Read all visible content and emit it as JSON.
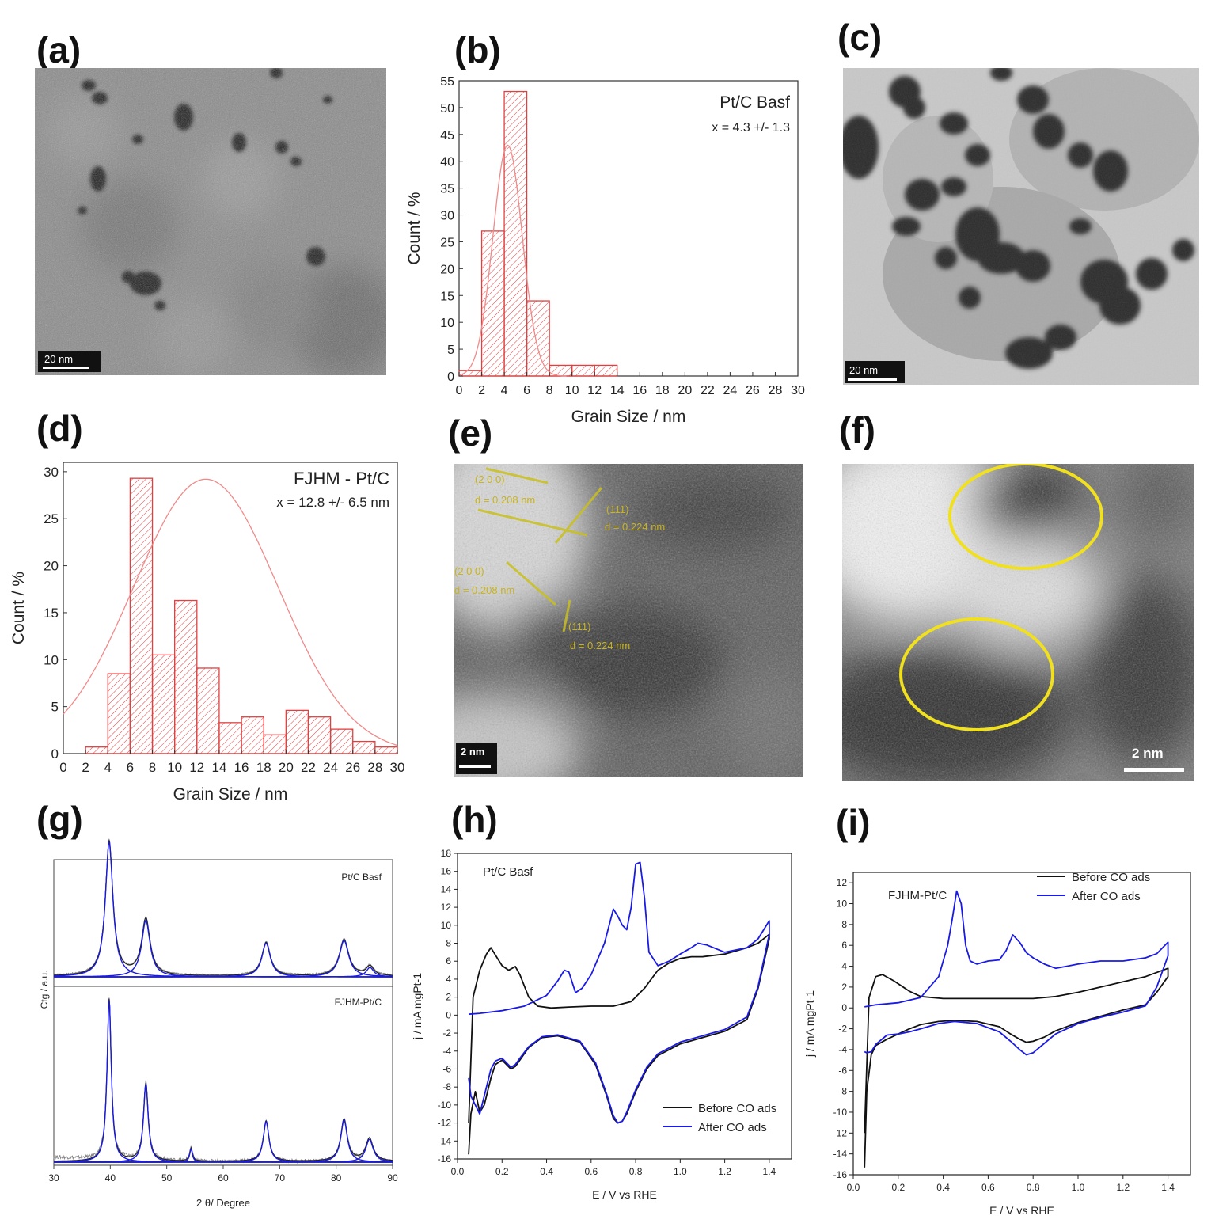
{
  "figure": {
    "panels": [
      {
        "label": "(a)",
        "scale_bar": "20 nm"
      },
      {
        "label": "(b)"
      },
      {
        "label": "(c)",
        "scale_bar": "20 nm"
      },
      {
        "label": "(d)"
      },
      {
        "label": "(e)",
        "scale_bar": "2 nm",
        "annotations": [
          "(2 0 0)",
          "d = 0.208 nm",
          "(111)",
          "d = 0.224 nm",
          "(2 0 0)",
          "d = 0.208 nm",
          "(111)",
          "d = 0.224 nm"
        ]
      },
      {
        "label": "(f)",
        "scale_bar": "2 nm"
      },
      {
        "label": "(g)"
      },
      {
        "label": "(h)"
      },
      {
        "label": "(i)"
      }
    ]
  },
  "chart_data": [
    {
      "id": "b",
      "type": "bar",
      "title": "Pt/C Basf",
      "annotation": "x = 4.3 +/- 1.3",
      "xlabel": "Grain Size / nm",
      "ylabel": "Count / %",
      "xlim": [
        0,
        30
      ],
      "ylim": [
        0,
        55
      ],
      "xticks": [
        0,
        2,
        4,
        6,
        8,
        10,
        12,
        14,
        16,
        18,
        20,
        22,
        24,
        26,
        28,
        30
      ],
      "yticks": [
        0,
        5,
        10,
        15,
        20,
        25,
        30,
        35,
        40,
        45,
        50,
        55
      ],
      "bin_edges": [
        0,
        2,
        4,
        6,
        8,
        10,
        12,
        14
      ],
      "values": [
        1,
        27,
        53,
        14,
        2,
        2,
        2
      ],
      "fit": {
        "type": "gaussian",
        "mean": 4.3,
        "sd": 1.3,
        "peak": 43
      },
      "colors": {
        "bar": "#e04040",
        "fit": "#f08a8a"
      }
    },
    {
      "id": "d",
      "type": "bar",
      "title": "FJHM - Pt/C",
      "annotation": "x = 12.8 +/- 6.5 nm",
      "xlabel": "Grain Size / nm",
      "ylabel": "Count / %",
      "xlim": [
        0,
        30
      ],
      "ylim": [
        0,
        31
      ],
      "xticks": [
        0,
        2,
        4,
        6,
        8,
        10,
        12,
        14,
        16,
        18,
        20,
        22,
        24,
        26,
        28,
        30
      ],
      "yticks": [
        0,
        5,
        10,
        15,
        20,
        25,
        30
      ],
      "bin_edges": [
        2,
        4,
        6,
        8,
        10,
        12,
        14,
        16,
        18,
        20,
        22,
        24,
        26,
        28,
        30
      ],
      "values": [
        0.7,
        8.5,
        29.3,
        10.5,
        16.3,
        9.1,
        3.3,
        3.9,
        2.0,
        4.6,
        3.9,
        2.6,
        1.3,
        0.7
      ],
      "fit": {
        "type": "gaussian",
        "mean": 12.8,
        "sd": 6.5,
        "peak": 29.2
      },
      "colors": {
        "bar": "#e04040",
        "fit": "#f08a8a"
      }
    },
    {
      "id": "g",
      "type": "line",
      "xlabel": "2 θ/ Degree",
      "ylabel": "Ctg / a.u.",
      "xlim": [
        30,
        90
      ],
      "xticks": [
        30,
        40,
        50,
        60,
        70,
        80,
        90
      ],
      "series": [
        {
          "name": "Pt/C Basf",
          "peaks": [
            {
              "x": 39.8,
              "h": 1.0,
              "w": 0.8
            },
            {
              "x": 46.3,
              "h": 0.42,
              "w": 0.9
            },
            {
              "x": 67.6,
              "h": 0.25,
              "w": 0.9
            },
            {
              "x": 81.4,
              "h": 0.27,
              "w": 1.0
            },
            {
              "x": 86.0,
              "h": 0.07,
              "w": 0.8
            }
          ]
        },
        {
          "name": "FJHM-Pt/C",
          "peaks": [
            {
              "x": 39.8,
              "h": 1.0,
              "w": 0.45
            },
            {
              "x": 46.3,
              "h": 0.48,
              "w": 0.5
            },
            {
              "x": 54.3,
              "h": 0.08,
              "w": 0.3
            },
            {
              "x": 67.6,
              "h": 0.25,
              "w": 0.6
            },
            {
              "x": 81.4,
              "h": 0.26,
              "w": 0.7
            },
            {
              "x": 85.9,
              "h": 0.14,
              "w": 0.8
            }
          ]
        }
      ],
      "colors": {
        "fit": "#1a1adf",
        "data": "#888888",
        "envelope": "#222222"
      }
    },
    {
      "id": "h",
      "type": "line",
      "title": "Pt/C Basf",
      "xlabel": "E / V vs RHE",
      "ylabel": "j / mA mgPt-1",
      "xlim": [
        0.0,
        1.5
      ],
      "ylim": [
        -16,
        18
      ],
      "xticks": [
        0.0,
        0.2,
        0.4,
        0.6,
        0.8,
        1.0,
        1.2,
        1.4
      ],
      "yticks": [
        -16,
        -14,
        -12,
        -10,
        -8,
        -6,
        -4,
        -2,
        0,
        2,
        4,
        6,
        8,
        10,
        12,
        14,
        16,
        18
      ],
      "legend": "bottom-right",
      "series": [
        {
          "name": "Before CO ads",
          "color": "#111111",
          "x": [
            0.05,
            0.07,
            0.1,
            0.13,
            0.15,
            0.18,
            0.2,
            0.23,
            0.26,
            0.28,
            0.32,
            0.36,
            0.42,
            0.5,
            0.6,
            0.7,
            0.78,
            0.84,
            0.9,
            0.95,
            1.0,
            1.05,
            1.1,
            1.2,
            1.3,
            1.35,
            1.4,
            1.4,
            1.35,
            1.3,
            1.2,
            1.1,
            1.0,
            0.9,
            0.85,
            0.8,
            0.76,
            0.74,
            0.72,
            0.7,
            0.67,
            0.62,
            0.55,
            0.45,
            0.38,
            0.32,
            0.28,
            0.26,
            0.24,
            0.22,
            0.2,
            0.17,
            0.15,
            0.12,
            0.1,
            0.08,
            0.06,
            0.05
          ],
          "y": [
            -12,
            2,
            5,
            6.8,
            7.5,
            6.3,
            5.5,
            5.0,
            5.4,
            4.5,
            2,
            1.0,
            0.8,
            0.9,
            1.0,
            1.0,
            1.5,
            3,
            5,
            5.8,
            6.3,
            6.5,
            6.5,
            6.8,
            7.5,
            8,
            9,
            8.5,
            3,
            -0.5,
            -1.8,
            -2.5,
            -3.2,
            -4.5,
            -6,
            -8.5,
            -11,
            -11.8,
            -12,
            -11.5,
            -9,
            -5.5,
            -3,
            -2.3,
            -2.5,
            -3.6,
            -5,
            -5.7,
            -6,
            -5.5,
            -5,
            -5.5,
            -7,
            -10,
            -10.8,
            -8.5,
            -11,
            -15.5
          ]
        },
        {
          "name": "After CO ads",
          "color": "#1a1ae6",
          "x": [
            0.05,
            0.1,
            0.2,
            0.3,
            0.4,
            0.45,
            0.48,
            0.5,
            0.53,
            0.56,
            0.6,
            0.66,
            0.7,
            0.72,
            0.74,
            0.76,
            0.78,
            0.8,
            0.82,
            0.84,
            0.86,
            0.9,
            0.95,
            1.0,
            1.05,
            1.08,
            1.12,
            1.2,
            1.3,
            1.35,
            1.4,
            1.4,
            1.35,
            1.3,
            1.2,
            1.1,
            1.0,
            0.9,
            0.85,
            0.8,
            0.76,
            0.74,
            0.72,
            0.7,
            0.67,
            0.62,
            0.55,
            0.45,
            0.38,
            0.32,
            0.28,
            0.26,
            0.24,
            0.22,
            0.2,
            0.17,
            0.15,
            0.12,
            0.1,
            0.08,
            0.06,
            0.05
          ],
          "y": [
            0.1,
            0.2,
            0.5,
            1.0,
            2.2,
            3.8,
            5.0,
            4.8,
            2.5,
            3.0,
            4.5,
            8,
            11.8,
            11,
            10,
            9.5,
            12,
            16.8,
            17,
            13,
            7,
            5.5,
            6.0,
            6.8,
            7.5,
            8.0,
            7.8,
            7.0,
            7.5,
            8.5,
            10.5,
            9,
            3.2,
            -0.2,
            -1.6,
            -2.3,
            -3.0,
            -4.3,
            -5.8,
            -8.3,
            -10.8,
            -11.8,
            -12,
            -11.2,
            -8.8,
            -5.3,
            -2.9,
            -2.2,
            -2.4,
            -3.5,
            -4.8,
            -5.5,
            -5.8,
            -5.3,
            -4.8,
            -5.1,
            -6,
            -9,
            -11,
            -10,
            -9,
            -7
          ]
        }
      ]
    },
    {
      "id": "i",
      "type": "line",
      "title": "FJHM-Pt/C",
      "xlabel": "E / V vs RHE",
      "ylabel": "j / mA mgPt-1",
      "xlim": [
        0.0,
        1.5
      ],
      "ylim": [
        -16,
        13
      ],
      "xticks": [
        0.0,
        0.2,
        0.4,
        0.6,
        0.8,
        1.0,
        1.2,
        1.4
      ],
      "yticks": [
        -16,
        -14,
        -12,
        -10,
        -8,
        -6,
        -4,
        -2,
        0,
        2,
        4,
        6,
        8,
        10,
        12
      ],
      "legend": "top-right",
      "series": [
        {
          "name": "Before CO ads",
          "color": "#111111",
          "x": [
            0.05,
            0.07,
            0.1,
            0.13,
            0.18,
            0.25,
            0.3,
            0.4,
            0.5,
            0.6,
            0.7,
            0.8,
            0.9,
            1.0,
            1.1,
            1.2,
            1.3,
            1.4,
            1.4,
            1.35,
            1.3,
            1.2,
            1.1,
            1.0,
            0.9,
            0.85,
            0.8,
            0.77,
            0.74,
            0.7,
            0.65,
            0.55,
            0.45,
            0.38,
            0.3,
            0.25,
            0.2,
            0.15,
            0.1,
            0.08,
            0.06,
            0.05
          ],
          "y": [
            -12,
            1,
            3.0,
            3.2,
            2.6,
            1.6,
            1.1,
            0.9,
            0.9,
            0.9,
            0.9,
            0.9,
            1.1,
            1.5,
            2,
            2.5,
            3,
            3.8,
            3,
            1.5,
            0.3,
            -0.2,
            -0.8,
            -1.4,
            -2.2,
            -2.8,
            -3.2,
            -3.3,
            -3.0,
            -2.5,
            -1.8,
            -1.3,
            -1.2,
            -1.3,
            -1.6,
            -2.0,
            -2.5,
            -3.0,
            -3.6,
            -4.5,
            -8,
            -15.3
          ]
        },
        {
          "name": "After CO ads",
          "color": "#1a1ae6",
          "x": [
            0.05,
            0.1,
            0.2,
            0.3,
            0.38,
            0.42,
            0.44,
            0.46,
            0.48,
            0.5,
            0.52,
            0.55,
            0.6,
            0.65,
            0.68,
            0.71,
            0.74,
            0.77,
            0.8,
            0.85,
            0.9,
            0.95,
            1.0,
            1.1,
            1.2,
            1.3,
            1.35,
            1.4,
            1.4,
            1.35,
            1.3,
            1.2,
            1.1,
            1.0,
            0.9,
            0.85,
            0.8,
            0.77,
            0.74,
            0.7,
            0.65,
            0.55,
            0.45,
            0.38,
            0.3,
            0.25,
            0.2,
            0.15,
            0.1,
            0.08,
            0.06,
            0.05
          ],
          "y": [
            0.1,
            0.3,
            0.5,
            1.0,
            3,
            6,
            8.5,
            11.2,
            10,
            6,
            4.5,
            4.2,
            4.5,
            4.6,
            5.5,
            7.0,
            6.3,
            5.3,
            4.8,
            4.2,
            3.8,
            4.0,
            4.2,
            4.5,
            4.5,
            4.8,
            5.2,
            6.3,
            5,
            2,
            0.2,
            -0.4,
            -0.9,
            -1.5,
            -2.5,
            -3.4,
            -4.3,
            -4.5,
            -4.0,
            -3.2,
            -2.3,
            -1.5,
            -1.3,
            -1.5,
            -2.0,
            -2.3,
            -2.5,
            -2.6,
            -3.5,
            -4.2,
            -4.3,
            -4.2
          ]
        }
      ]
    }
  ]
}
